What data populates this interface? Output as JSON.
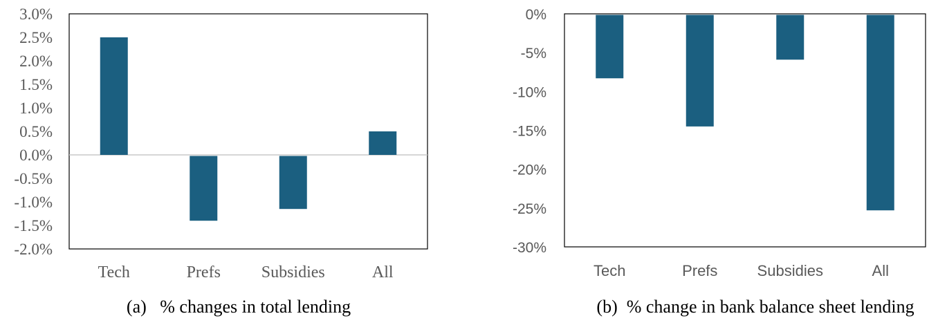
{
  "chart_data": [
    {
      "type": "bar",
      "caption": "(a)   % changes in total lending",
      "categories": [
        "Tech",
        "Prefs",
        "Subsidies",
        "All"
      ],
      "values": [
        2.5,
        -1.4,
        -1.15,
        0.5
      ],
      "ylim": [
        -2.0,
        3.0
      ],
      "yticks": [
        "3.0%",
        "2.5%",
        "2.0%",
        "1.5%",
        "1.0%",
        "0.5%",
        "0.0%",
        "-0.5%",
        "-1.0%",
        "-1.5%",
        "-2.0%"
      ],
      "bar_color": "#1b5f80",
      "grid": false
    },
    {
      "type": "bar",
      "caption": "(b)  % change in bank balance sheet lending",
      "categories": [
        "Tech",
        "Prefs",
        "Subsidies",
        "All"
      ],
      "values": [
        -8.3,
        -14.5,
        -5.9,
        -25.3
      ],
      "ylim": [
        -30,
        0
      ],
      "yticks": [
        "0%",
        "-5%",
        "-10%",
        "-15%",
        "-20%",
        "-25%",
        "-30%"
      ],
      "bar_color": "#1b5f80",
      "grid": false
    }
  ]
}
